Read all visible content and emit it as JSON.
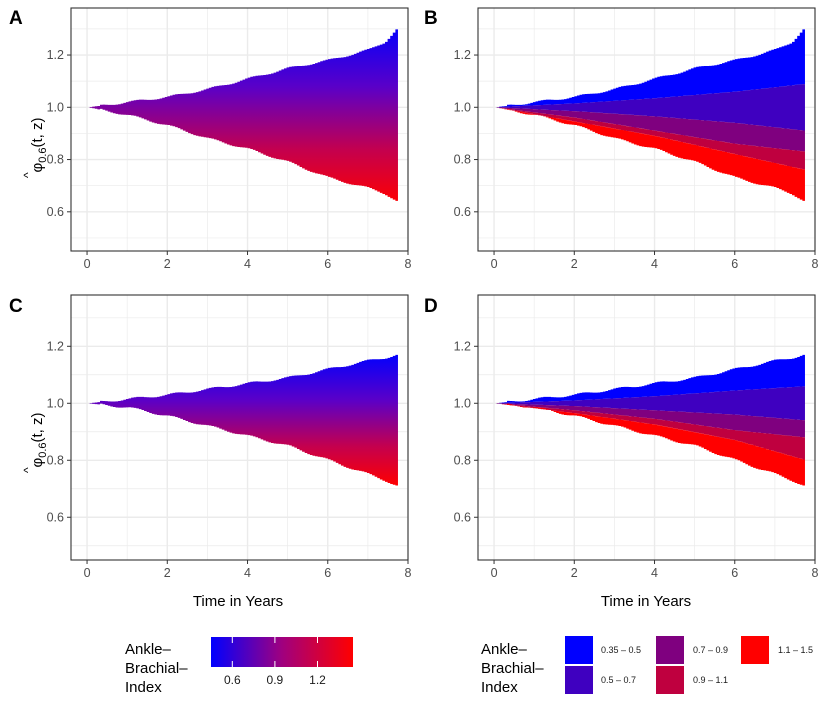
{
  "chart_data": [
    {
      "panel": "A",
      "type": "area",
      "fill": "gradient",
      "xlabel": "",
      "ylabel": "φ̂0.6(t, z)",
      "xlim": [
        -0.4,
        8.0
      ],
      "ylim": [
        0.45,
        1.38
      ],
      "x_ticks": [
        0,
        2,
        4,
        6,
        8
      ],
      "y_ticks": [
        0.6,
        0.8,
        1.0,
        1.2
      ],
      "x_tick_labels": [
        "0",
        "2",
        "4",
        "6",
        "8"
      ],
      "y_tick_labels": [
        "0.6",
        "0.8",
        "1.0",
        "1.2"
      ],
      "upper_envelope": {
        "x": [
          0,
          1,
          2,
          3,
          4,
          5,
          6,
          7,
          7.4,
          7.7,
          7.75
        ],
        "y": [
          1.0,
          1.02,
          1.04,
          1.07,
          1.11,
          1.15,
          1.18,
          1.22,
          1.25,
          1.3,
          1.32
        ]
      },
      "lower_envelope": {
        "x": [
          0,
          1,
          2,
          3,
          4,
          5,
          6,
          7,
          7.4,
          7.7,
          7.75
        ],
        "y": [
          1.0,
          0.97,
          0.93,
          0.88,
          0.84,
          0.79,
          0.73,
          0.69,
          0.67,
          0.64,
          0.63
        ]
      }
    },
    {
      "panel": "B",
      "type": "area",
      "fill": "bands",
      "xlabel": "",
      "ylabel": "",
      "xlim": [
        -0.4,
        8.0
      ],
      "ylim": [
        0.45,
        1.38
      ],
      "x_ticks": [
        0,
        2,
        4,
        6,
        8
      ],
      "y_ticks": [
        0.6,
        0.8,
        1.0,
        1.2
      ],
      "x_tick_labels": [
        "0",
        "2",
        "4",
        "6",
        "8"
      ],
      "y_tick_labels": [
        "0.6",
        "0.8",
        "1.0",
        "1.2"
      ],
      "upper_envelope": {
        "x": [
          0,
          1,
          2,
          3,
          4,
          5,
          6,
          7,
          7.4,
          7.7,
          7.75
        ],
        "y": [
          1.0,
          1.02,
          1.04,
          1.07,
          1.11,
          1.15,
          1.18,
          1.22,
          1.25,
          1.3,
          1.32
        ]
      },
      "band_boundaries": [
        {
          "x": [
            0,
            2,
            4,
            6,
            7.75
          ],
          "y": [
            1.0,
            1.015,
            1.035,
            1.06,
            1.09
          ]
        },
        {
          "x": [
            0,
            2,
            4,
            6,
            7.75
          ],
          "y": [
            1.0,
            0.985,
            0.965,
            0.94,
            0.91
          ]
        },
        {
          "x": [
            0,
            2,
            4,
            6,
            7.75
          ],
          "y": [
            1.0,
            0.96,
            0.91,
            0.86,
            0.83
          ]
        },
        {
          "x": [
            0,
            2,
            4,
            6,
            7.75
          ],
          "y": [
            1.0,
            0.945,
            0.89,
            0.82,
            0.76
          ]
        }
      ],
      "lower_envelope": {
        "x": [
          0,
          1,
          2,
          3,
          4,
          5,
          6,
          7,
          7.4,
          7.7,
          7.75
        ],
        "y": [
          1.0,
          0.97,
          0.93,
          0.88,
          0.84,
          0.79,
          0.73,
          0.69,
          0.67,
          0.64,
          0.63
        ]
      }
    },
    {
      "panel": "C",
      "type": "area",
      "fill": "gradient",
      "xlabel": "Time in Years",
      "ylabel": "φ̂0.6(t, z)",
      "xlim": [
        -0.4,
        8.0
      ],
      "ylim": [
        0.45,
        1.38
      ],
      "x_ticks": [
        0,
        2,
        4,
        6,
        8
      ],
      "y_ticks": [
        0.6,
        0.8,
        1.0,
        1.2
      ],
      "x_tick_labels": [
        "0",
        "2",
        "4",
        "6",
        "8"
      ],
      "y_tick_labels": [
        "0.6",
        "0.8",
        "1.0",
        "1.2"
      ],
      "upper_envelope": {
        "x": [
          0,
          1,
          2,
          3,
          4,
          5,
          6,
          7,
          7.4,
          7.7,
          7.75
        ],
        "y": [
          1.0,
          1.015,
          1.03,
          1.05,
          1.07,
          1.09,
          1.12,
          1.15,
          1.16,
          1.17,
          1.175
        ]
      },
      "lower_envelope": {
        "x": [
          0,
          1,
          2,
          3,
          4,
          5,
          6,
          7,
          7.4,
          7.7,
          7.75
        ],
        "y": [
          1.0,
          0.985,
          0.955,
          0.92,
          0.885,
          0.85,
          0.8,
          0.75,
          0.73,
          0.71,
          0.71
        ]
      }
    },
    {
      "panel": "D",
      "type": "area",
      "fill": "bands",
      "xlabel": "Time in Years",
      "ylabel": "",
      "xlim": [
        -0.4,
        8.0
      ],
      "ylim": [
        0.45,
        1.38
      ],
      "x_ticks": [
        0,
        2,
        4,
        6,
        8
      ],
      "y_ticks": [
        0.6,
        0.8,
        1.0,
        1.2
      ],
      "x_tick_labels": [
        "0",
        "2",
        "4",
        "6",
        "8"
      ],
      "y_tick_labels": [
        "0.6",
        "0.8",
        "1.0",
        "1.2"
      ],
      "upper_envelope": {
        "x": [
          0,
          1,
          2,
          3,
          4,
          5,
          6,
          7,
          7.4,
          7.7,
          7.75
        ],
        "y": [
          1.0,
          1.015,
          1.03,
          1.05,
          1.07,
          1.09,
          1.12,
          1.15,
          1.16,
          1.17,
          1.175
        ]
      },
      "band_boundaries": [
        {
          "x": [
            0,
            2,
            4,
            6,
            7.75
          ],
          "y": [
            1.0,
            1.01,
            1.025,
            1.045,
            1.06
          ]
        },
        {
          "x": [
            0,
            2,
            4,
            6,
            7.75
          ],
          "y": [
            1.0,
            0.99,
            0.975,
            0.96,
            0.94
          ]
        },
        {
          "x": [
            0,
            2,
            4,
            6,
            7.75
          ],
          "y": [
            1.0,
            0.975,
            0.945,
            0.905,
            0.88
          ]
        },
        {
          "x": [
            0,
            2,
            4,
            6,
            7.75
          ],
          "y": [
            1.0,
            0.965,
            0.925,
            0.87,
            0.8
          ]
        }
      ],
      "lower_envelope": {
        "x": [
          0,
          1,
          2,
          3,
          4,
          5,
          6,
          7,
          7.4,
          7.7,
          7.75
        ],
        "y": [
          1.0,
          0.985,
          0.955,
          0.92,
          0.885,
          0.85,
          0.8,
          0.75,
          0.73,
          0.71,
          0.71
        ]
      }
    }
  ],
  "y_axis_title": {
    "hat": "^",
    "base": "φ",
    "subscript": "0.6",
    "args": "(t, z)"
  },
  "x_axis_title": "Time in Years",
  "legend_continuous": {
    "title_lines": [
      "Ankle–",
      "Brachial–",
      "Index"
    ],
    "ticks": [
      0.6,
      0.9,
      1.2
    ],
    "tick_labels": [
      "0.6",
      "0.9",
      "1.2"
    ],
    "range": [
      0.45,
      1.45
    ],
    "low_color": "#0000ff",
    "high_color": "#ff0000"
  },
  "legend_discrete": {
    "title_lines": [
      "Ankle–",
      "Brachial–",
      "Index"
    ],
    "items": [
      {
        "label": "0.35 – 0.5",
        "color": "#0000ff"
      },
      {
        "label": "0.5 – 0.7",
        "color": "#3f00c0"
      },
      {
        "label": "0.7 – 0.9",
        "color": "#7f007f"
      },
      {
        "label": "0.9 – 1.1",
        "color": "#bf003f"
      },
      {
        "label": "1.1 – 1.5",
        "color": "#ff0000"
      }
    ]
  },
  "colors": {
    "panel_background": "#ffffff",
    "grid": "#ebebeb",
    "border": "#333333"
  }
}
